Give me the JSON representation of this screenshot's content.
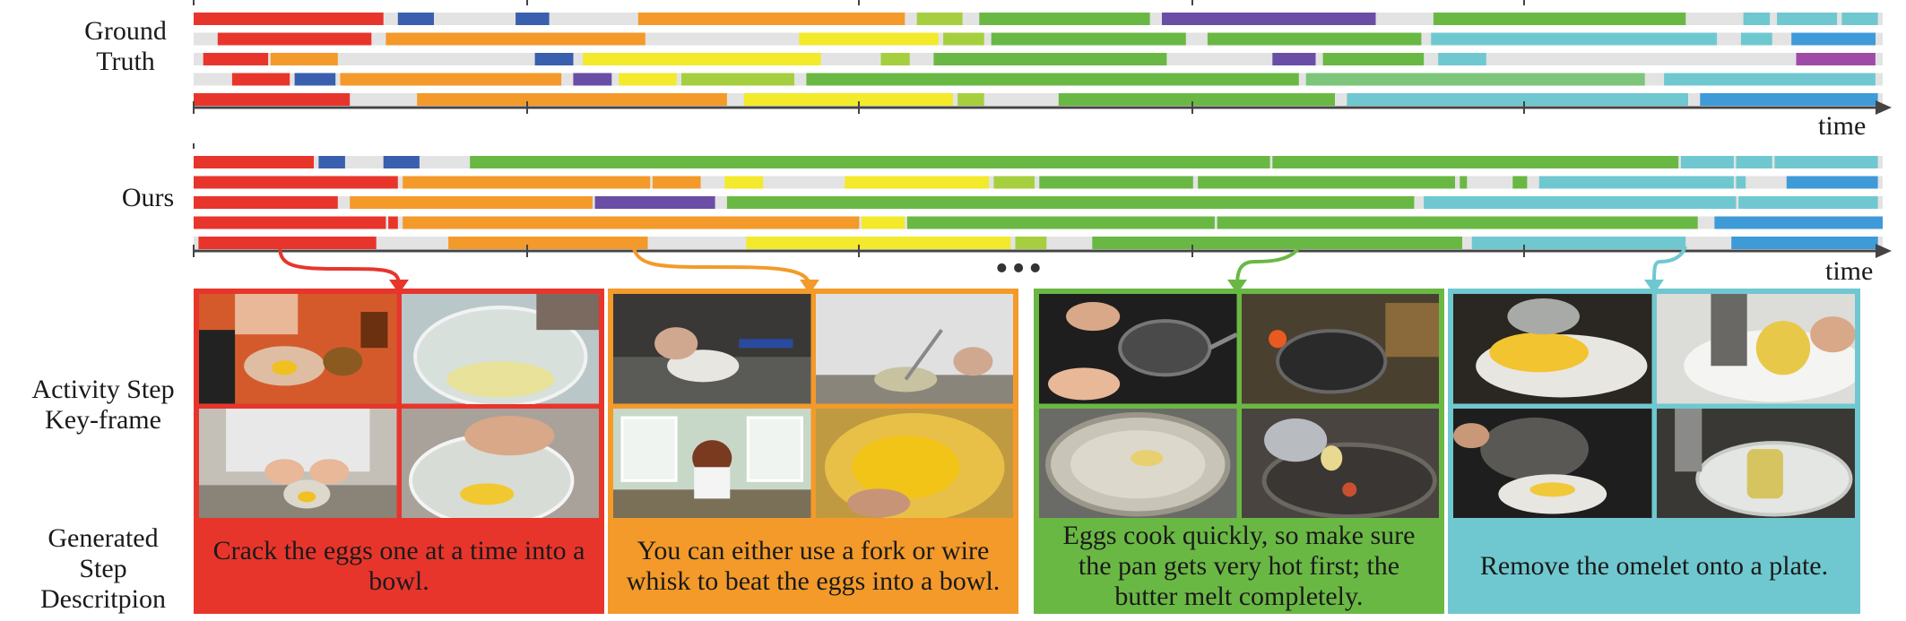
{
  "labels": {
    "ground_truth_line1": "Ground",
    "ground_truth_line2": "Truth",
    "ours": "Ours",
    "time_top": "time",
    "time_bottom": "time",
    "keyframe_line1": "Activity Step",
    "keyframe_line2": "Key-frame",
    "desc_line1": "Generated",
    "desc_line2": "Step",
    "desc_line3": "Descritpion",
    "ellipsis": "•••"
  },
  "colors": {
    "red": "#e8352c",
    "blue": "#3a5fae",
    "orange": "#f39a2a",
    "yellow": "#f2ea2b",
    "lime": "#a6cf3f",
    "green": "#6ab844",
    "purple": "#6a4ea5",
    "teal": "#6fc8cf",
    "skyblue": "#3f9ad8",
    "magenta": "#a04aa8",
    "lightgreen": "#7cc57a",
    "track": "#e3e3e3"
  },
  "ground_truth_rows": [
    [
      [
        "red",
        0,
        79
      ],
      [
        "blue",
        85,
        100
      ],
      [
        "blue",
        134,
        148
      ],
      [
        "orange",
        185,
        296
      ],
      [
        "lime",
        301,
        320
      ],
      [
        "green",
        327,
        398
      ],
      [
        "purple",
        403,
        492
      ],
      [
        "green",
        516,
        621
      ],
      [
        "teal",
        645,
        656
      ],
      [
        "teal",
        659,
        684
      ],
      [
        "teal",
        686,
        701
      ]
    ],
    [
      [
        "red",
        10,
        74
      ],
      [
        "orange",
        80,
        188
      ],
      [
        "yellow",
        252,
        310
      ],
      [
        "lime",
        312,
        329
      ],
      [
        "green",
        332,
        413
      ],
      [
        "green",
        422,
        511
      ],
      [
        "teal",
        515,
        634
      ],
      [
        "teal",
        644,
        657
      ],
      [
        "skyblue",
        665,
        700
      ]
    ],
    [
      [
        "red",
        4,
        31
      ],
      [
        "orange",
        32,
        60
      ],
      [
        "blue",
        142,
        158
      ],
      [
        "yellow",
        162,
        261
      ],
      [
        "lime",
        286,
        298
      ],
      [
        "green",
        308,
        405
      ],
      [
        "purple",
        449,
        467
      ],
      [
        "green",
        470,
        512
      ],
      [
        "teal",
        518,
        538
      ],
      [
        "magenta",
        667,
        700
      ]
    ],
    [
      [
        "red",
        16,
        40
      ],
      [
        "blue",
        42,
        59
      ],
      [
        "orange",
        61,
        153
      ],
      [
        "purple",
        158,
        174
      ],
      [
        "yellow",
        177,
        201
      ],
      [
        "lime",
        203,
        250
      ],
      [
        "green",
        255,
        460
      ],
      [
        "lightgreen",
        463,
        604
      ],
      [
        "teal",
        612,
        700
      ]
    ],
    [
      [
        "red",
        0,
        65
      ],
      [
        "orange",
        93,
        222
      ],
      [
        "yellow",
        229,
        316
      ],
      [
        "lime",
        318,
        329
      ],
      [
        "green",
        360,
        475
      ],
      [
        "teal",
        480,
        622
      ],
      [
        "skyblue",
        627,
        701
      ]
    ]
  ],
  "ours_rows": [
    [
      [
        "red",
        0,
        50
      ],
      [
        "blue",
        52,
        63
      ],
      [
        "blue",
        79,
        94
      ],
      [
        "green",
        115,
        448
      ],
      [
        "green",
        449,
        618
      ],
      [
        "teal",
        619,
        641
      ],
      [
        "teal",
        642,
        657
      ],
      [
        "teal",
        658,
        701
      ]
    ],
    [
      [
        "red",
        0,
        85
      ],
      [
        "orange",
        87,
        190
      ],
      [
        "orange",
        191,
        211
      ],
      [
        "yellow",
        221,
        237
      ],
      [
        "yellow",
        271,
        331
      ],
      [
        "lime",
        333,
        350
      ],
      [
        "green",
        352,
        416
      ],
      [
        "green",
        418,
        525
      ],
      [
        "green",
        527,
        530
      ],
      [
        "green",
        549,
        555
      ],
      [
        "teal",
        560,
        641
      ],
      [
        "teal",
        642,
        646
      ],
      [
        "skyblue",
        663,
        701
      ]
    ],
    [
      [
        "red",
        0,
        60
      ],
      [
        "orange",
        65,
        166
      ],
      [
        "purple",
        167,
        217
      ],
      [
        "green",
        222,
        508
      ],
      [
        "teal",
        512,
        642
      ],
      [
        "teal",
        643,
        701
      ]
    ],
    [
      [
        "red",
        0,
        80
      ],
      [
        "red",
        81,
        85
      ],
      [
        "orange",
        87,
        277
      ],
      [
        "yellow",
        278,
        296
      ],
      [
        "green",
        297,
        425
      ],
      [
        "green",
        426,
        626
      ],
      [
        "skyblue",
        633,
        703
      ]
    ],
    [
      [
        "red",
        2,
        76
      ],
      [
        "orange",
        106,
        189
      ],
      [
        "yellow",
        230,
        340
      ],
      [
        "lime",
        342,
        355
      ],
      [
        "green",
        374,
        528
      ],
      [
        "teal",
        532,
        621
      ],
      [
        "skyblue",
        640,
        701
      ]
    ]
  ],
  "steps": [
    {
      "color": "red",
      "text": "Crack the eggs one at a time into a bowl."
    },
    {
      "color": "orange",
      "text": "You can either use a fork or wire whisk to beat the eggs into a bowl."
    },
    {
      "color": "green",
      "text": "Eggs cook quickly, so make sure the pan gets very hot first; the butter melt completely."
    },
    {
      "color": "teal",
      "text": "Remove the omelet onto a plate."
    }
  ]
}
